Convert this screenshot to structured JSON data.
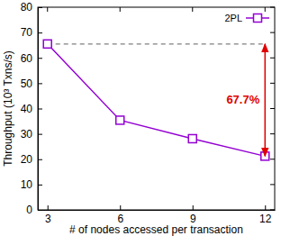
{
  "chart_data": {
    "type": "line",
    "x_label": "# of nodes accessed per transaction",
    "y_label": "Throughput (10³ Txns/s)",
    "x": [
      3,
      6,
      9,
      12
    ],
    "series": [
      {
        "name": "2PL",
        "color": "#9400d3",
        "marker": "square",
        "line_style": "solid",
        "values": [
          65.5,
          35.4,
          28.1,
          21.2
        ]
      }
    ],
    "xlim": [
      2.6,
      12.4
    ],
    "ylim": [
      0,
      80
    ],
    "xticks": [
      3,
      6,
      9,
      12
    ],
    "yticks": [
      0,
      10,
      20,
      30,
      40,
      50,
      60,
      70,
      80
    ],
    "grid": false,
    "legend": "upper right",
    "reference_line": {
      "y": 65.5,
      "x": [
        3,
        12
      ],
      "line_style": "dashed",
      "color": "#808080"
    },
    "annotations": [
      {
        "text": "67.7%",
        "x": 12,
        "y": [
          21.2,
          65.5
        ],
        "color": "#e00000"
      }
    ]
  }
}
